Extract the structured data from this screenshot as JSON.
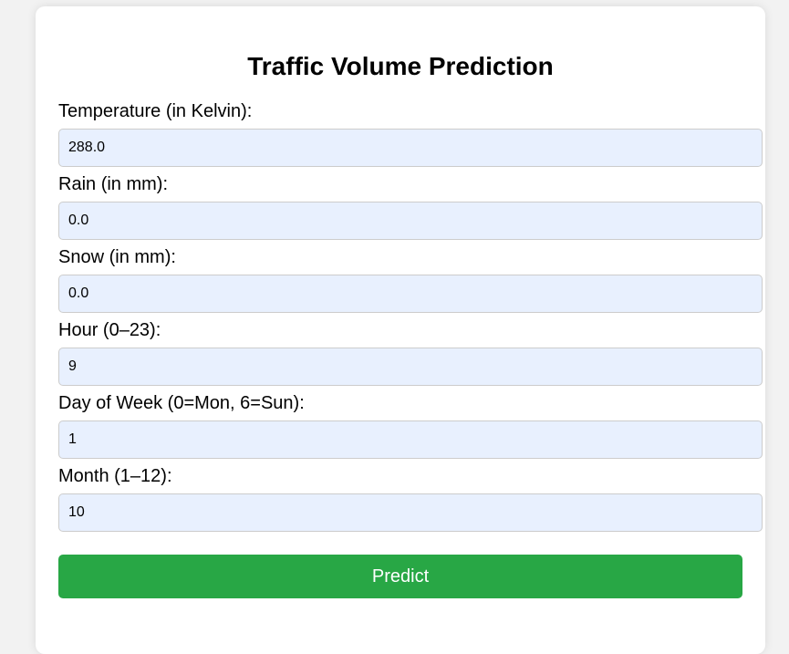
{
  "page": {
    "title": "Traffic Volume Prediction"
  },
  "form": {
    "fields": [
      {
        "label": "Temperature (in Kelvin):",
        "value": "288.0"
      },
      {
        "label": "Rain (in mm):",
        "value": "0.0"
      },
      {
        "label": "Snow (in mm):",
        "value": "0.0"
      },
      {
        "label": "Hour (0–23):",
        "value": "9"
      },
      {
        "label": "Day of Week (0=Mon, 6=Sun):",
        "value": "1"
      },
      {
        "label": "Month (1–12):",
        "value": "10"
      }
    ],
    "submit_label": "Predict"
  },
  "colors": {
    "page_background": "#f2f2f2",
    "card_background": "#ffffff",
    "input_background": "#e8f0fe",
    "button_background": "#28a745",
    "button_text": "#ffffff"
  }
}
